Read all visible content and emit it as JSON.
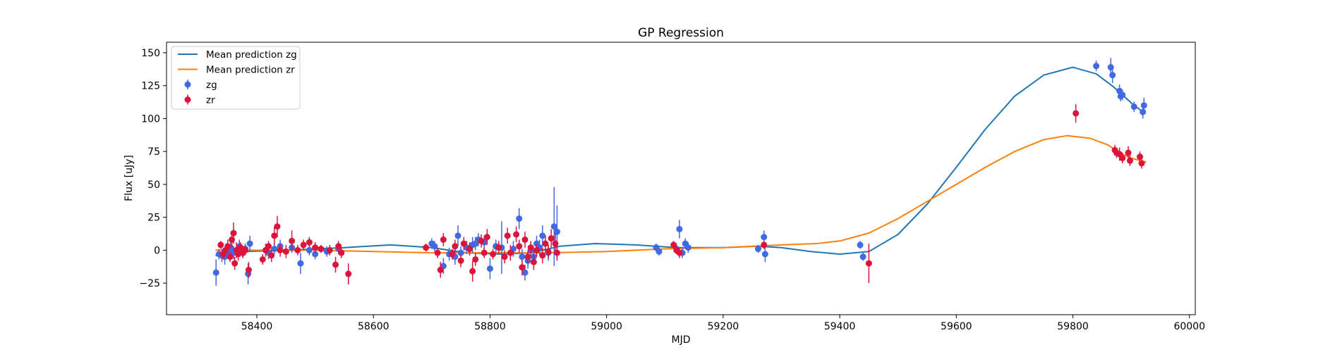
{
  "chart_data": {
    "type": "scatter",
    "title": "GP Regression",
    "xlabel": "MJD",
    "ylabel": "Flux [uJy]",
    "xlim": [
      58245,
      60010
    ],
    "ylim": [
      -49,
      158
    ],
    "xticks": [
      58400,
      58600,
      58800,
      59000,
      59200,
      59400,
      59600,
      59800,
      60000
    ],
    "yticks": [
      -25,
      0,
      25,
      50,
      75,
      100,
      125,
      150
    ],
    "grid": false,
    "legend_position": "top-left",
    "legend": [
      {
        "label": "Mean prediction zg",
        "kind": "line",
        "color": "#1f77b4"
      },
      {
        "label": "Mean prediction zr",
        "kind": "line",
        "color": "#ff7f0e"
      },
      {
        "label": "zg",
        "kind": "errorbar",
        "color": "#4169e1"
      },
      {
        "label": "zr",
        "kind": "errorbar",
        "color": "#dc143c"
      }
    ],
    "lines": [
      {
        "name": "Mean prediction zg",
        "color": "#1f77b4",
        "points": [
          [
            58330,
            -4
          ],
          [
            58380,
            -1
          ],
          [
            58450,
            0
          ],
          [
            58550,
            2
          ],
          [
            58630,
            4
          ],
          [
            58700,
            2
          ],
          [
            58760,
            -2
          ],
          [
            58820,
            -3
          ],
          [
            58870,
            -2
          ],
          [
            58920,
            3
          ],
          [
            58980,
            5
          ],
          [
            59050,
            4
          ],
          [
            59120,
            2
          ],
          [
            59200,
            2
          ],
          [
            59260,
            3
          ],
          [
            59300,
            2
          ],
          [
            59350,
            -1
          ],
          [
            59400,
            -3
          ],
          [
            59450,
            -1
          ],
          [
            59500,
            12
          ],
          [
            59550,
            35
          ],
          [
            59600,
            63
          ],
          [
            59650,
            92
          ],
          [
            59700,
            117
          ],
          [
            59750,
            133
          ],
          [
            59800,
            139
          ],
          [
            59840,
            134
          ],
          [
            59870,
            124
          ],
          [
            59900,
            112
          ],
          [
            59920,
            105
          ]
        ]
      },
      {
        "name": "Mean prediction zr",
        "color": "#ff7f0e",
        "points": [
          [
            58330,
            0
          ],
          [
            58400,
            0
          ],
          [
            58500,
            0
          ],
          [
            58600,
            -1
          ],
          [
            58700,
            -2
          ],
          [
            58800,
            -2
          ],
          [
            58900,
            -2
          ],
          [
            59000,
            -1
          ],
          [
            59100,
            1
          ],
          [
            59200,
            2
          ],
          [
            59300,
            4
          ],
          [
            59360,
            5
          ],
          [
            59400,
            7
          ],
          [
            59450,
            13
          ],
          [
            59500,
            24
          ],
          [
            59550,
            37
          ],
          [
            59600,
            50
          ],
          [
            59650,
            63
          ],
          [
            59700,
            75
          ],
          [
            59750,
            84
          ],
          [
            59790,
            87
          ],
          [
            59830,
            85
          ],
          [
            59860,
            80
          ],
          [
            59880,
            74
          ],
          [
            59900,
            70
          ],
          [
            59925,
            67
          ]
        ]
      }
    ],
    "series": [
      {
        "name": "zg",
        "color": "#4169e1",
        "points": [
          [
            58330,
            -17,
            10
          ],
          [
            58335,
            -3,
            4
          ],
          [
            58340,
            -4,
            5
          ],
          [
            58345,
            -5,
            6
          ],
          [
            58350,
            -1,
            4
          ],
          [
            58355,
            2,
            4
          ],
          [
            58360,
            -2,
            5
          ],
          [
            58365,
            0,
            4
          ],
          [
            58370,
            3,
            5
          ],
          [
            58375,
            -1,
            4
          ],
          [
            58380,
            1,
            4
          ],
          [
            58385,
            -18,
            8
          ],
          [
            58388,
            5,
            6
          ],
          [
            58420,
            -2,
            5
          ],
          [
            58430,
            1,
            4
          ],
          [
            58440,
            3,
            5
          ],
          [
            58460,
            2,
            4
          ],
          [
            58475,
            -10,
            8
          ],
          [
            58490,
            0,
            4
          ],
          [
            58500,
            -3,
            4
          ],
          [
            58520,
            -1,
            4
          ],
          [
            58540,
            1,
            4
          ],
          [
            58700,
            5,
            4
          ],
          [
            58705,
            3,
            4
          ],
          [
            58720,
            -12,
            6
          ],
          [
            58730,
            -3,
            5
          ],
          [
            58740,
            -5,
            6
          ],
          [
            58745,
            11,
            8
          ],
          [
            58750,
            -2,
            5
          ],
          [
            58760,
            2,
            5
          ],
          [
            58770,
            4,
            6
          ],
          [
            58775,
            5,
            5
          ],
          [
            58780,
            8,
            5
          ],
          [
            58790,
            6,
            5
          ],
          [
            58800,
            -14,
            8
          ],
          [
            58810,
            3,
            5
          ],
          [
            58820,
            2,
            20
          ],
          [
            58840,
            1,
            6
          ],
          [
            58850,
            24,
            8
          ],
          [
            58855,
            -5,
            6
          ],
          [
            58860,
            -17,
            6
          ],
          [
            58865,
            -8,
            6
          ],
          [
            58870,
            0,
            6
          ],
          [
            58875,
            -5,
            6
          ],
          [
            58880,
            5,
            6
          ],
          [
            58885,
            2,
            6
          ],
          [
            58890,
            11,
            8
          ],
          [
            58900,
            -2,
            6
          ],
          [
            58910,
            18,
            30
          ],
          [
            58915,
            14,
            20
          ],
          [
            59085,
            2,
            3
          ],
          [
            59090,
            -1,
            3
          ],
          [
            59120,
            1,
            4
          ],
          [
            59125,
            16,
            7
          ],
          [
            59130,
            -2,
            4
          ],
          [
            59135,
            5,
            4
          ],
          [
            59140,
            2,
            4
          ],
          [
            59260,
            1,
            3
          ],
          [
            59270,
            10,
            5
          ],
          [
            59272,
            -3,
            6
          ],
          [
            59435,
            4,
            3
          ],
          [
            59440,
            -5,
            3
          ],
          [
            59840,
            140,
            4
          ],
          [
            59865,
            139,
            7
          ],
          [
            59868,
            133,
            6
          ],
          [
            59880,
            121,
            5
          ],
          [
            59882,
            117,
            4
          ],
          [
            59885,
            118,
            4
          ],
          [
            59905,
            109,
            4
          ],
          [
            59920,
            105,
            5
          ],
          [
            59922,
            110,
            6
          ]
        ]
      },
      {
        "name": "zr",
        "color": "#dc143c",
        "points": [
          [
            58338,
            4,
            3
          ],
          [
            58342,
            -3,
            4
          ],
          [
            58346,
            0,
            4
          ],
          [
            58350,
            3,
            5
          ],
          [
            58354,
            -5,
            4
          ],
          [
            58357,
            8,
            6
          ],
          [
            58360,
            13,
            8
          ],
          [
            58362,
            -10,
            5
          ],
          [
            58365,
            0,
            6
          ],
          [
            58368,
            -3,
            5
          ],
          [
            58372,
            2,
            4
          ],
          [
            58376,
            -2,
            4
          ],
          [
            58380,
            0,
            4
          ],
          [
            58386,
            -15,
            6
          ],
          [
            58410,
            -7,
            4
          ],
          [
            58415,
            0,
            5
          ],
          [
            58420,
            3,
            4
          ],
          [
            58425,
            -4,
            5
          ],
          [
            58430,
            11,
            7
          ],
          [
            58435,
            18,
            8
          ],
          [
            58440,
            0,
            5
          ],
          [
            58450,
            -1,
            5
          ],
          [
            58460,
            7,
            8
          ],
          [
            58470,
            0,
            4
          ],
          [
            58480,
            4,
            4
          ],
          [
            58490,
            6,
            4
          ],
          [
            58500,
            2,
            4
          ],
          [
            58510,
            1,
            3
          ],
          [
            58525,
            0,
            4
          ],
          [
            58535,
            -11,
            6
          ],
          [
            58540,
            3,
            4
          ],
          [
            58545,
            -2,
            4
          ],
          [
            58557,
            -18,
            8
          ],
          [
            58690,
            2,
            3
          ],
          [
            58710,
            -2,
            4
          ],
          [
            58715,
            -15,
            6
          ],
          [
            58720,
            8,
            5
          ],
          [
            58735,
            -3,
            4
          ],
          [
            58740,
            3,
            5
          ],
          [
            58750,
            -8,
            5
          ],
          [
            58755,
            5,
            5
          ],
          [
            58765,
            1,
            5
          ],
          [
            58770,
            -16,
            8
          ],
          [
            58775,
            -7,
            5
          ],
          [
            58785,
            7,
            5
          ],
          [
            58790,
            -2,
            4
          ],
          [
            58795,
            10,
            6
          ],
          [
            58805,
            -3,
            4
          ],
          [
            58815,
            2,
            5
          ],
          [
            58825,
            -5,
            5
          ],
          [
            58830,
            11,
            6
          ],
          [
            58835,
            -2,
            6
          ],
          [
            58845,
            12,
            6
          ],
          [
            58850,
            3,
            5
          ],
          [
            58855,
            -13,
            6
          ],
          [
            58860,
            8,
            6
          ],
          [
            58865,
            -5,
            5
          ],
          [
            58870,
            2,
            5
          ],
          [
            58875,
            -9,
            6
          ],
          [
            58880,
            0,
            5
          ],
          [
            58890,
            -4,
            6
          ],
          [
            58895,
            5,
            6
          ],
          [
            58900,
            -1,
            5
          ],
          [
            58905,
            9,
            7
          ],
          [
            58912,
            5,
            8
          ],
          [
            58915,
            -2,
            6
          ],
          [
            59115,
            4,
            3
          ],
          [
            59120,
            0,
            3
          ],
          [
            59125,
            -2,
            4
          ],
          [
            59270,
            4,
            3
          ],
          [
            59450,
            -10,
            15
          ],
          [
            59805,
            104,
            7
          ],
          [
            59872,
            76,
            4
          ],
          [
            59875,
            74,
            4
          ],
          [
            59880,
            73,
            5
          ],
          [
            59885,
            70,
            4
          ],
          [
            59895,
            74,
            5
          ],
          [
            59898,
            68,
            4
          ],
          [
            59915,
            71,
            4
          ],
          [
            59918,
            66,
            4
          ]
        ]
      }
    ]
  }
}
